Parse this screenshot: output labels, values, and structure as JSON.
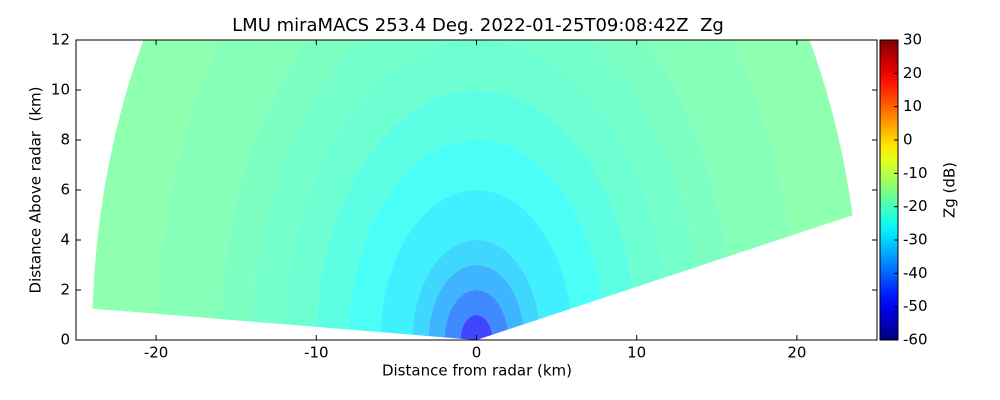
{
  "chart_data": {
    "type": "rhi",
    "title": "LMU miraMACS 253.4 Deg. 2022-01-25T09:08:42Z  Zg",
    "x_label": "Distance from radar (km)",
    "y_label": "Distance Above radar  (km)",
    "colorbar_label": "Zg (dB)",
    "colormap": "jet",
    "clim": [
      -60,
      30
    ],
    "cticks": [
      -60,
      -50,
      -40,
      -30,
      -20,
      -10,
      0,
      10,
      20,
      30
    ],
    "elevation_limits": [
      12,
      177
    ],
    "range_bins": [
      0,
      1,
      2,
      3,
      4,
      6,
      8,
      10,
      12,
      14,
      16,
      18,
      20,
      22,
      24
    ],
    "values": [
      -48,
      -40,
      -35,
      -31,
      -28,
      -25,
      -23,
      -21,
      -20,
      -19,
      -18,
      -18,
      -17,
      -17
    ],
    "xlim": [
      -25,
      25
    ],
    "ylim": [
      0,
      12
    ],
    "xticks": [
      -20,
      -10,
      0,
      10,
      20
    ],
    "yticks": [
      0,
      2,
      4,
      6,
      8,
      10,
      12
    ],
    "grid": false
  }
}
